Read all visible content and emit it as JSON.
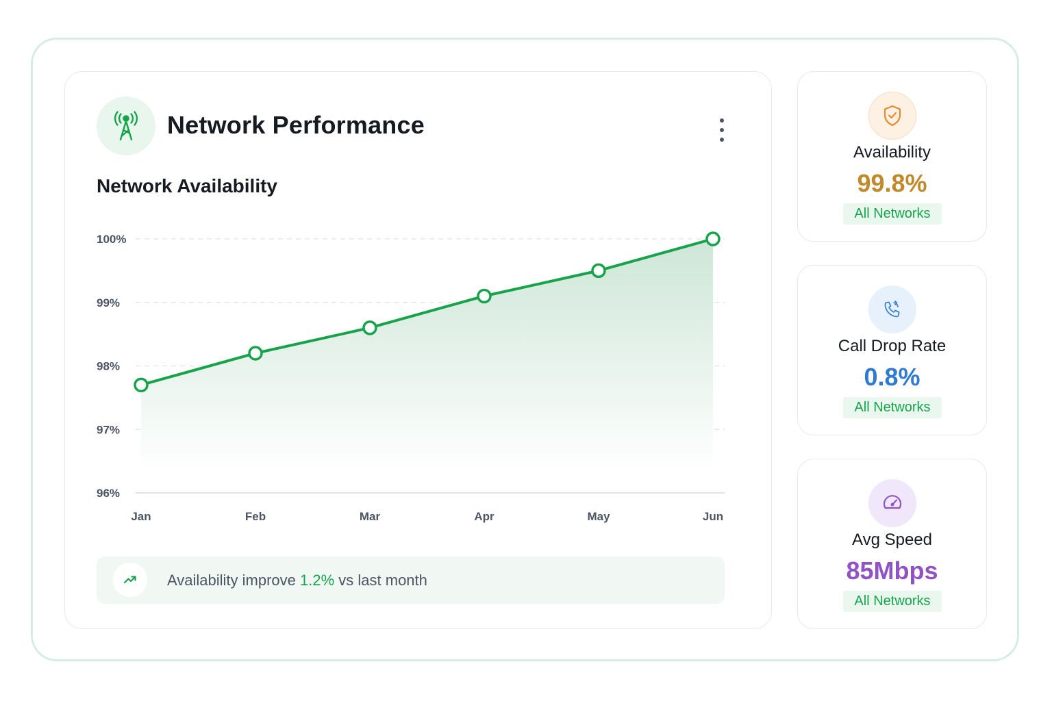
{
  "header": {
    "title": "Network Performance",
    "icon": "antenna-tower-icon",
    "menu_icon": "kebab-menu-icon"
  },
  "chart_section": {
    "title": "Network Availability"
  },
  "chart_data": {
    "type": "area",
    "title": "Network Availability",
    "xlabel": "",
    "ylabel": "",
    "categories": [
      "Jan",
      "Feb",
      "Mar",
      "Apr",
      "May",
      "Jun"
    ],
    "series": [
      {
        "values": [
          97.7,
          98.2,
          98.6,
          99.1,
          99.5,
          100.0
        ]
      }
    ],
    "ylim": [
      96,
      100
    ],
    "y_ticks": [
      96,
      97,
      98,
      99,
      100
    ],
    "y_tick_labels": [
      "96%",
      "97%",
      "98%",
      "99%",
      "100%"
    ],
    "grid": true,
    "legend": "none",
    "line_color": "#16a34a",
    "fill_color": "#d4ebdd"
  },
  "insight": {
    "icon": "trending-up-icon",
    "prefix": "Availability improve ",
    "highlight": "1.2%",
    "suffix": " vs last month"
  },
  "stats": [
    {
      "icon": "shield-check-icon",
      "label": "Availability",
      "value": "99.8%",
      "badge": "All Networks",
      "color": "#c0892a",
      "icon_bg": "#fdf1e4",
      "icon_border": "#f7dcc0"
    },
    {
      "icon": "phone-call-icon",
      "label": "Call Drop Rate",
      "value": "0.8%",
      "badge": "All Networks",
      "color": "#2f7bd1",
      "icon_bg": "#e7f1fb",
      "icon_border": "#e7f1fb"
    },
    {
      "icon": "speedometer-icon",
      "label": "Avg Speed",
      "value": "85Mbps",
      "badge": "All Networks",
      "color": "#9052c4",
      "icon_bg": "#f1e7fa",
      "icon_border": "#f1e7fa"
    }
  ]
}
